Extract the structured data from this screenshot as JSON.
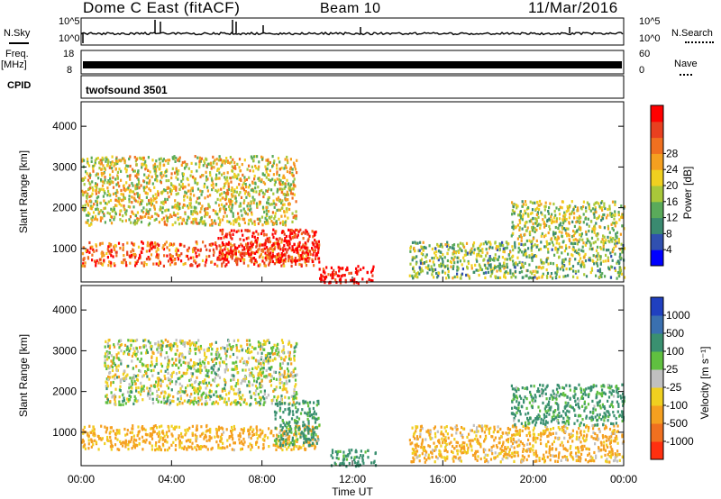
{
  "header": {
    "station": "Dome C East (fitACF)",
    "beam": "Beam 10",
    "date": "11/Mar/2016"
  },
  "nsky": {
    "label": "N.Sky",
    "tick_top": "10^5",
    "tick_bottom": "10^0",
    "right_label": "N.Search",
    "right_tick_top": "10^5",
    "right_tick_bottom": "10^0"
  },
  "freq": {
    "label": "Freq.",
    "unit": "[MHz]",
    "tick_top": "18",
    "tick_bottom": "8",
    "right_label": "Nave",
    "right_tick_top": "60",
    "right_tick_bottom": "0"
  },
  "cpid": {
    "label": "CPID",
    "value": "twofsound 3501"
  },
  "x_axis": {
    "label": "Time UT",
    "ticks": [
      "00:00",
      "04:00",
      "08:00",
      "12:00",
      "16:00",
      "20:00",
      "00:00"
    ]
  },
  "power_panel": {
    "ylabel": "Slant Range [km]",
    "yticks": [
      "1000",
      "2000",
      "3000",
      "4000"
    ],
    "colorbar_label": "Power [dB]",
    "colorbar_ticks": [
      "4",
      "8",
      "12",
      "16",
      "20",
      "24",
      "28"
    ],
    "colors": [
      "#0000ff",
      "#3050b0",
      "#3a8a70",
      "#5aaa5a",
      "#a8c83a",
      "#f0d020",
      "#f5a020",
      "#f07020",
      "#e84020",
      "#ff0000"
    ]
  },
  "velocity_panel": {
    "ylabel": "Slant Range [km]",
    "yticks": [
      "1000",
      "2000",
      "3000",
      "4000"
    ],
    "colorbar_label": "Velocity [m s⁻¹]",
    "colorbar_ticks": [
      "1000",
      "500",
      "100",
      "25",
      "-25",
      "-100",
      "-500",
      "-1000"
    ],
    "colors": [
      "#2040c0",
      "#3a70b0",
      "#3a9070",
      "#60c040",
      "#c0c0c0",
      "#f0d020",
      "#f5a020",
      "#f07020",
      "#ff3010"
    ]
  },
  "chart_data": {
    "type": "heatmap",
    "x_range_hours": [
      0,
      24
    ],
    "y_range_km": [
      180,
      4600
    ],
    "power_db": {
      "blobs": [
        {
          "t": [
            0.0,
            10.5
          ],
          "range_km": [
            600,
            1200
          ],
          "power_db": 24
        },
        {
          "t": [
            6.0,
            10.5
          ],
          "range_km": [
            700,
            1500
          ],
          "power_db": 28
        },
        {
          "t": [
            0.0,
            9.5
          ],
          "range_km": [
            1600,
            3300
          ],
          "power_db": 16
        },
        {
          "t": [
            10.5,
            13.0
          ],
          "range_km": [
            180,
            600
          ],
          "power_db": 30
        },
        {
          "t": [
            14.5,
            24.0
          ],
          "range_km": [
            300,
            1200
          ],
          "power_db": 12
        },
        {
          "t": [
            19.0,
            24.0
          ],
          "range_km": [
            1200,
            2200
          ],
          "power_db": 14
        }
      ]
    },
    "velocity_ms": {
      "blobs": [
        {
          "t": [
            0.0,
            10.5
          ],
          "range_km": [
            600,
            1200
          ],
          "velocity": -150
        },
        {
          "t": [
            1.0,
            9.5
          ],
          "range_km": [
            1700,
            3300
          ],
          "velocity": 0
        },
        {
          "t": [
            8.5,
            10.5
          ],
          "range_km": [
            700,
            1800
          ],
          "velocity": 150
        },
        {
          "t": [
            11.0,
            13.0
          ],
          "range_km": [
            180,
            600
          ],
          "velocity": 200
        },
        {
          "t": [
            14.5,
            24.0
          ],
          "range_km": [
            300,
            1200
          ],
          "velocity": -120
        },
        {
          "t": [
            19.0,
            24.0
          ],
          "range_km": [
            1200,
            2200
          ],
          "velocity": 150
        }
      ]
    }
  }
}
